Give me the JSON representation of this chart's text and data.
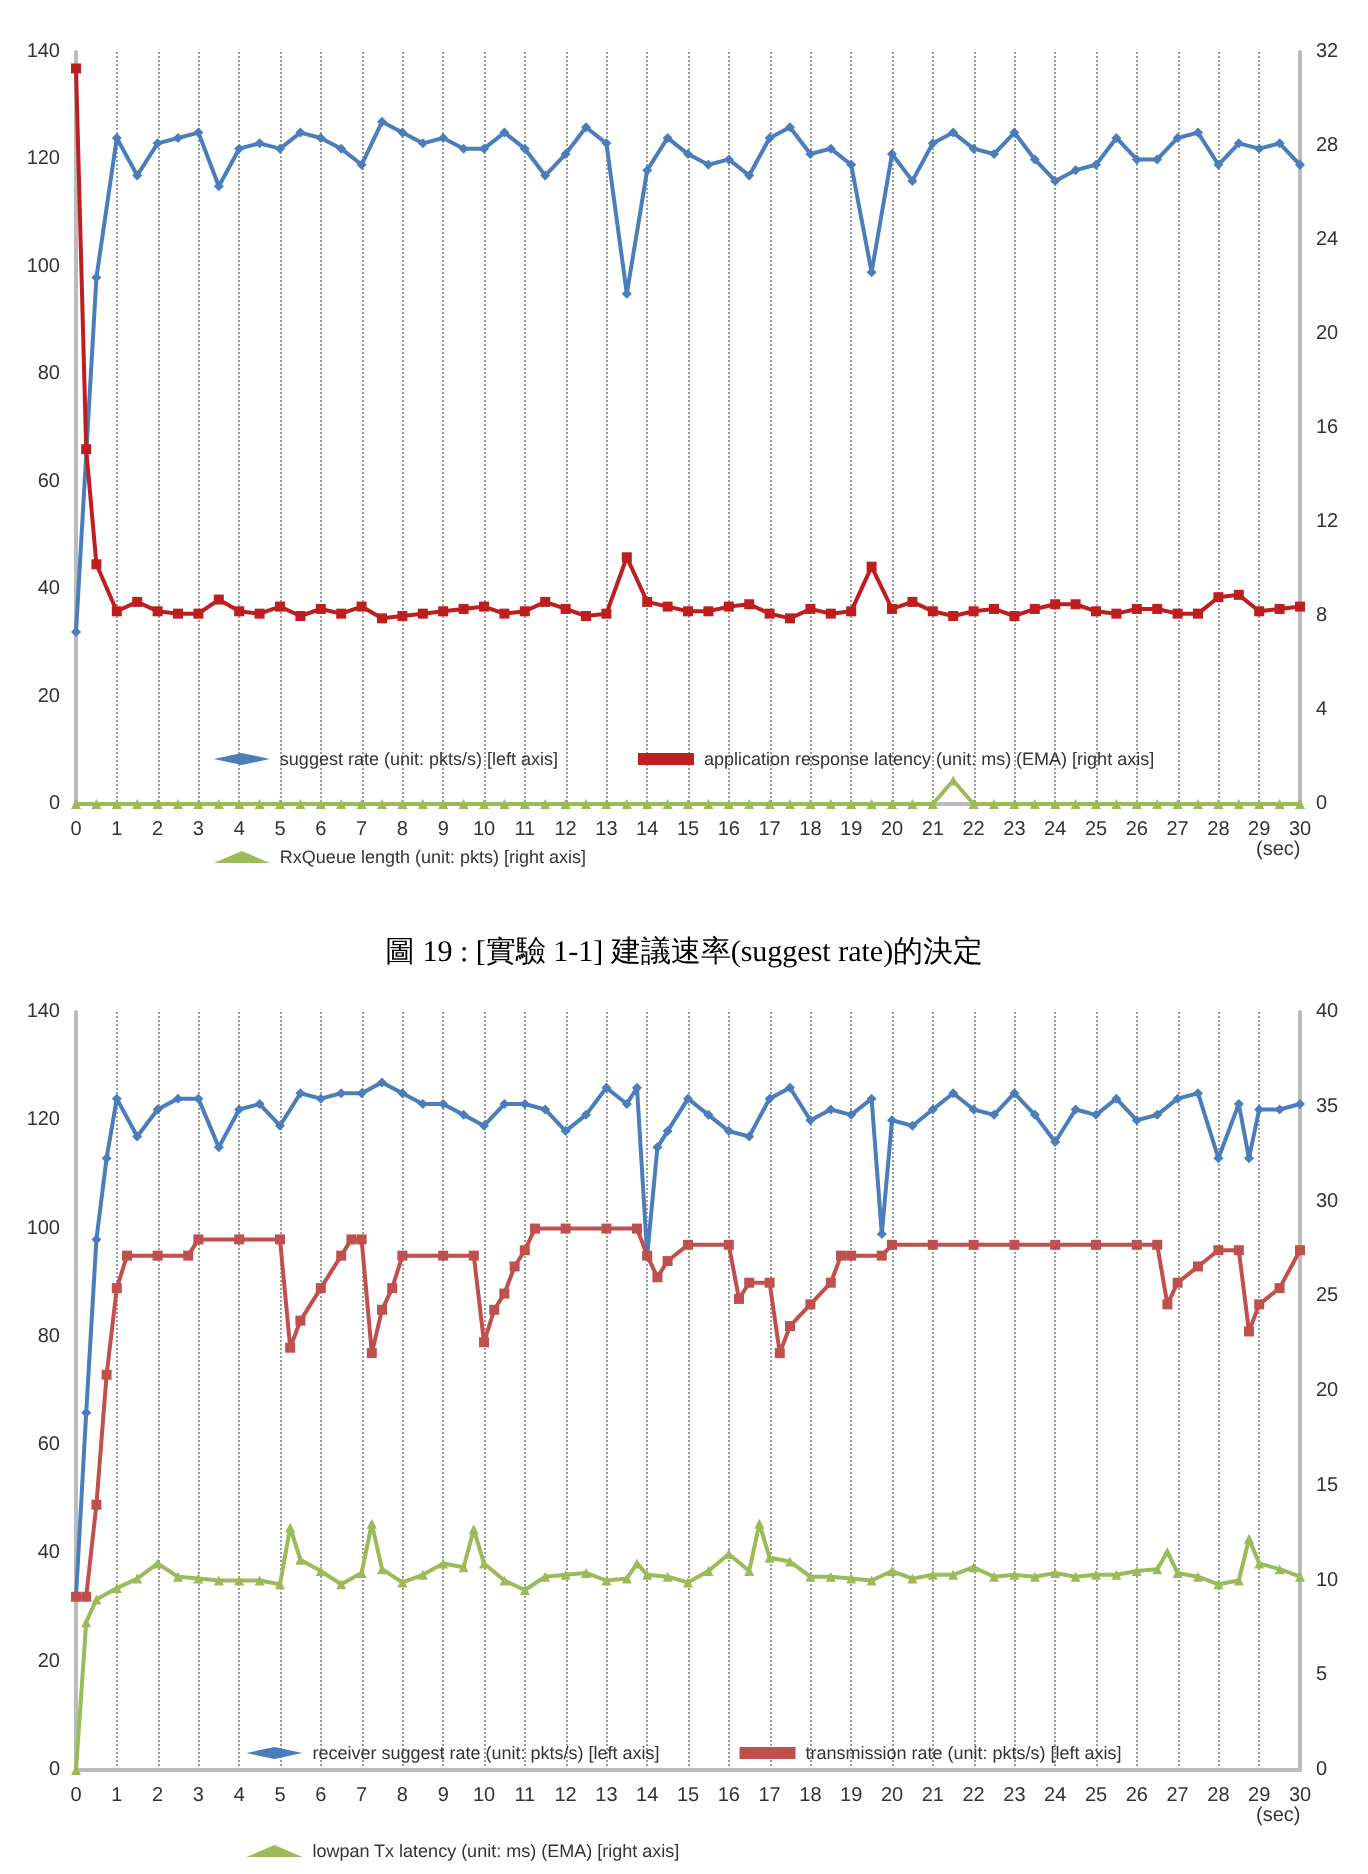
{
  "chart_data": [
    {
      "type": "line",
      "xlabel": "(sec)",
      "annotations": [
        "圖 19 : [實驗 1-1] 建議速率(suggest rate)的決定"
      ],
      "xlim": [
        0,
        30
      ],
      "xticks": [
        0,
        1,
        2,
        3,
        4,
        5,
        6,
        7,
        8,
        9,
        10,
        11,
        12,
        13,
        14,
        15,
        16,
        17,
        18,
        19,
        20,
        21,
        22,
        23,
        24,
        25,
        26,
        27,
        28,
        29,
        30
      ],
      "ylim": [
        0,
        140
      ],
      "yticks": [
        0,
        20,
        40,
        60,
        80,
        100,
        120,
        140
      ],
      "y2lim": [
        0,
        32
      ],
      "y2ticks": [
        0,
        4,
        8,
        12,
        16,
        20,
        24,
        28,
        32
      ],
      "grid": "x",
      "legend": "bottom",
      "line_style": "solid",
      "series": [
        {
          "name": "suggest rate (unit: pkts/s) [left axis]",
          "color": "#4a7ebb",
          "marker": "diamond",
          "x": [
            0,
            0.5,
            1,
            1.5,
            2,
            2.5,
            3,
            3.5,
            4,
            4.5,
            5,
            5.5,
            6,
            6.5,
            7,
            7.5,
            8,
            8.5,
            9,
            9.5,
            10,
            10.5,
            11,
            11.5,
            12,
            12.5,
            13,
            13.5,
            14,
            14.5,
            15,
            15.5,
            16,
            16.5,
            17,
            17.5,
            18,
            18.5,
            19,
            19.5,
            20,
            20.5,
            21,
            21.5,
            22,
            22.5,
            23,
            23.5,
            24,
            24.5,
            25,
            25.5,
            26,
            26.5,
            27,
            27.5,
            28,
            28.5,
            29,
            29.5,
            30
          ],
          "values": [
            32,
            98,
            124,
            117,
            123,
            124,
            125,
            115,
            122,
            123,
            122,
            125,
            124,
            122,
            119,
            127,
            125,
            123,
            124,
            122,
            122,
            125,
            122,
            117,
            121,
            126,
            123,
            95,
            118,
            124,
            121,
            119,
            120,
            117,
            124,
            126,
            121,
            122,
            119,
            99,
            121,
            116,
            123,
            125,
            122,
            121,
            125,
            120,
            116,
            118,
            119,
            124,
            120,
            120,
            124,
            125,
            119,
            123,
            122,
            123,
            119
          ]
        },
        {
          "name": "application response latency (unit: ms) (EMA) [right axis]",
          "color": "#be1e1e",
          "marker": "square",
          "axis": "y2",
          "x": [
            0,
            0.25,
            0.5,
            1,
            1.5,
            2,
            2.5,
            3,
            3.5,
            4,
            4.5,
            5,
            5.5,
            6,
            6.5,
            7,
            7.5,
            8,
            8.5,
            9,
            9.5,
            10,
            10.5,
            11,
            11.5,
            12,
            12.5,
            13,
            13.5,
            14,
            14.5,
            15,
            15.5,
            16,
            16.5,
            17,
            17.5,
            18,
            18.5,
            19,
            19.5,
            20,
            20.5,
            21,
            21.5,
            22,
            22.5,
            23,
            23.5,
            24,
            24.5,
            25,
            25.5,
            26,
            26.5,
            27,
            27.5,
            28,
            28.5,
            29,
            29.5,
            30
          ],
          "values": [
            31.3,
            15.1,
            10.2,
            8.2,
            8.6,
            8.2,
            8.1,
            8.1,
            8.7,
            8.2,
            8.1,
            8.4,
            8.0,
            8.3,
            8.1,
            8.4,
            7.9,
            8.0,
            8.1,
            8.2,
            8.3,
            8.4,
            8.1,
            8.2,
            8.6,
            8.3,
            8.0,
            8.1,
            10.5,
            8.6,
            8.4,
            8.2,
            8.2,
            8.4,
            8.5,
            8.1,
            7.9,
            8.3,
            8.1,
            8.2,
            10.1,
            8.3,
            8.6,
            8.2,
            8.0,
            8.2,
            8.3,
            8.0,
            8.3,
            8.5,
            8.5,
            8.2,
            8.1,
            8.3,
            8.3,
            8.1,
            8.1,
            8.8,
            8.9,
            8.2,
            8.3,
            8.4
          ]
        },
        {
          "name": "RxQueue length (unit: pkts) [right axis]",
          "color": "#9bbb59",
          "marker": "triangle",
          "axis": "y2",
          "x": [
            0,
            0.5,
            1,
            1.5,
            2,
            2.5,
            3,
            3.5,
            4,
            4.5,
            5,
            5.5,
            6,
            6.5,
            7,
            7.5,
            8,
            8.5,
            9,
            9.5,
            10,
            10.5,
            11,
            11.5,
            12,
            12.5,
            13,
            13.5,
            14,
            14.5,
            15,
            15.5,
            16,
            16.5,
            17,
            17.5,
            18,
            18.5,
            19,
            19.5,
            20,
            20.5,
            21,
            21.5,
            22,
            22.5,
            23,
            23.5,
            24,
            24.5,
            25,
            25.5,
            26,
            26.5,
            27,
            27.5,
            28,
            28.5,
            29,
            29.5,
            30
          ],
          "values": [
            0,
            0,
            0,
            0,
            0,
            0,
            0,
            0,
            0,
            0,
            0,
            0,
            0,
            0,
            0,
            0,
            0,
            0,
            0,
            0,
            0,
            0,
            0,
            0,
            0,
            0,
            0,
            0,
            0,
            0,
            0,
            0,
            0,
            0,
            0,
            0,
            0,
            0,
            0,
            0,
            0,
            0,
            0,
            1,
            0,
            0,
            0,
            0,
            0,
            0,
            0,
            0,
            0,
            0,
            0,
            0,
            0,
            0,
            0,
            0,
            0
          ]
        }
      ]
    },
    {
      "type": "line",
      "xlabel": "(sec)",
      "xlim": [
        0,
        30
      ],
      "xticks": [
        0,
        1,
        2,
        3,
        4,
        5,
        6,
        7,
        8,
        9,
        10,
        11,
        12,
        13,
        14,
        15,
        16,
        17,
        18,
        19,
        20,
        21,
        22,
        23,
        24,
        25,
        26,
        27,
        28,
        29,
        30
      ],
      "ylim": [
        0,
        140
      ],
      "yticks": [
        0,
        20,
        40,
        60,
        80,
        100,
        120,
        140
      ],
      "y2lim": [
        0,
        40
      ],
      "y2ticks": [
        0,
        5,
        10,
        15,
        20,
        25,
        30,
        35,
        40
      ],
      "grid": "x",
      "legend": "bottom",
      "line_style": "solid",
      "series": [
        {
          "name": "receiver suggest rate (unit: pkts/s) [left axis]",
          "color": "#4a7ebb",
          "marker": "diamond",
          "x": [
            0,
            0.25,
            0.5,
            0.75,
            1,
            1.5,
            2,
            2.5,
            3,
            3.5,
            4,
            4.5,
            5,
            5.5,
            6,
            6.5,
            7,
            7.5,
            8,
            8.5,
            9,
            9.5,
            10,
            10.5,
            11,
            11.5,
            12,
            12.5,
            13,
            13.5,
            13.75,
            14,
            14.25,
            14.5,
            15,
            15.5,
            16,
            16.5,
            17,
            17.5,
            18,
            18.5,
            19,
            19.5,
            19.75,
            20,
            20.5,
            21,
            21.5,
            22,
            22.5,
            23,
            23.5,
            24,
            24.5,
            25,
            25.5,
            26,
            26.5,
            27,
            27.5,
            28,
            28.5,
            28.75,
            29,
            29.5,
            30
          ],
          "values": [
            32,
            66,
            98,
            113,
            124,
            117,
            122,
            124,
            124,
            115,
            122,
            123,
            119,
            125,
            124,
            125,
            125,
            127,
            125,
            123,
            123,
            121,
            119,
            123,
            123,
            122,
            118,
            121,
            126,
            123,
            126,
            95,
            115,
            118,
            124,
            121,
            118,
            117,
            124,
            126,
            120,
            122,
            121,
            124,
            99,
            120,
            119,
            122,
            125,
            122,
            121,
            125,
            121,
            116,
            122,
            121,
            124,
            120,
            121,
            124,
            125,
            113,
            123,
            113,
            122,
            122,
            123
          ]
        },
        {
          "name": "transmission rate (unit: pkts/s) [left axis]",
          "color": "#c0504d",
          "marker": "square",
          "x": [
            0,
            0.25,
            0.5,
            0.75,
            1,
            1.25,
            2,
            2.75,
            3,
            4,
            5,
            5.25,
            5.5,
            6,
            6.5,
            6.75,
            7,
            7.25,
            7.5,
            7.75,
            8,
            9,
            9.75,
            10,
            10.25,
            10.5,
            10.75,
            11,
            11.25,
            12,
            13,
            13.75,
            14,
            14.25,
            14.5,
            15,
            16,
            16.25,
            16.5,
            17,
            17.25,
            17.5,
            18,
            18.5,
            18.75,
            19,
            19.75,
            20,
            21,
            22,
            23,
            24,
            25,
            26,
            26.5,
            26.75,
            27,
            27.5,
            28,
            28.5,
            28.75,
            29,
            29.5,
            30
          ],
          "values": [
            32,
            32,
            49,
            73,
            89,
            95,
            95,
            95,
            98,
            98,
            98,
            78,
            83,
            89,
            95,
            98,
            98,
            77,
            85,
            89,
            95,
            95,
            95,
            79,
            85,
            88,
            93,
            96,
            100,
            100,
            100,
            100,
            95,
            91,
            94,
            97,
            97,
            87,
            90,
            90,
            77,
            82,
            86,
            90,
            95,
            95,
            95,
            97,
            97,
            97,
            97,
            97,
            97,
            97,
            97,
            86,
            90,
            93,
            96,
            96,
            81,
            86,
            89,
            96
          ]
        },
        {
          "name": "lowpan Tx latency (unit: ms) (EMA) [right axis]",
          "color": "#9bbb59",
          "marker": "triangle",
          "axis": "y2",
          "x": [
            0,
            0.25,
            0.5,
            1,
            1.5,
            2,
            2.5,
            3,
            3.5,
            4,
            4.5,
            5,
            5.25,
            5.5,
            6,
            6.5,
            7,
            7.25,
            7.5,
            8,
            8.5,
            9,
            9.5,
            9.75,
            10,
            10.5,
            11,
            11.5,
            12,
            12.5,
            13,
            13.5,
            13.75,
            14,
            14.5,
            15,
            15.5,
            16,
            16.5,
            16.75,
            17,
            17.5,
            18,
            18.5,
            19,
            19.5,
            20,
            20.5,
            21,
            21.5,
            22,
            22.5,
            23,
            23.5,
            24,
            24.5,
            25,
            25.5,
            26,
            26.5,
            26.75,
            27,
            27.5,
            28,
            28.5,
            28.75,
            29,
            29.5,
            30
          ],
          "values": [
            0,
            7.8,
            9,
            9.6,
            10.1,
            10.9,
            10.2,
            10.1,
            10,
            10,
            10,
            9.8,
            12.8,
            11.1,
            10.5,
            9.8,
            10.4,
            13,
            10.6,
            9.9,
            10.3,
            10.9,
            10.7,
            12.7,
            10.9,
            10,
            9.5,
            10.2,
            10.3,
            10.4,
            10,
            10.1,
            10.9,
            10.3,
            10.2,
            9.9,
            10.5,
            11.4,
            10.5,
            13,
            11.2,
            11,
            10.2,
            10.2,
            10.1,
            10,
            10.5,
            10.1,
            10.3,
            10.3,
            10.7,
            10.2,
            10.3,
            10.2,
            10.4,
            10.2,
            10.3,
            10.3,
            10.5,
            10.6,
            11.5,
            10.4,
            10.2,
            9.8,
            10,
            12.2,
            10.9,
            10.6,
            10.2
          ]
        }
      ]
    }
  ]
}
